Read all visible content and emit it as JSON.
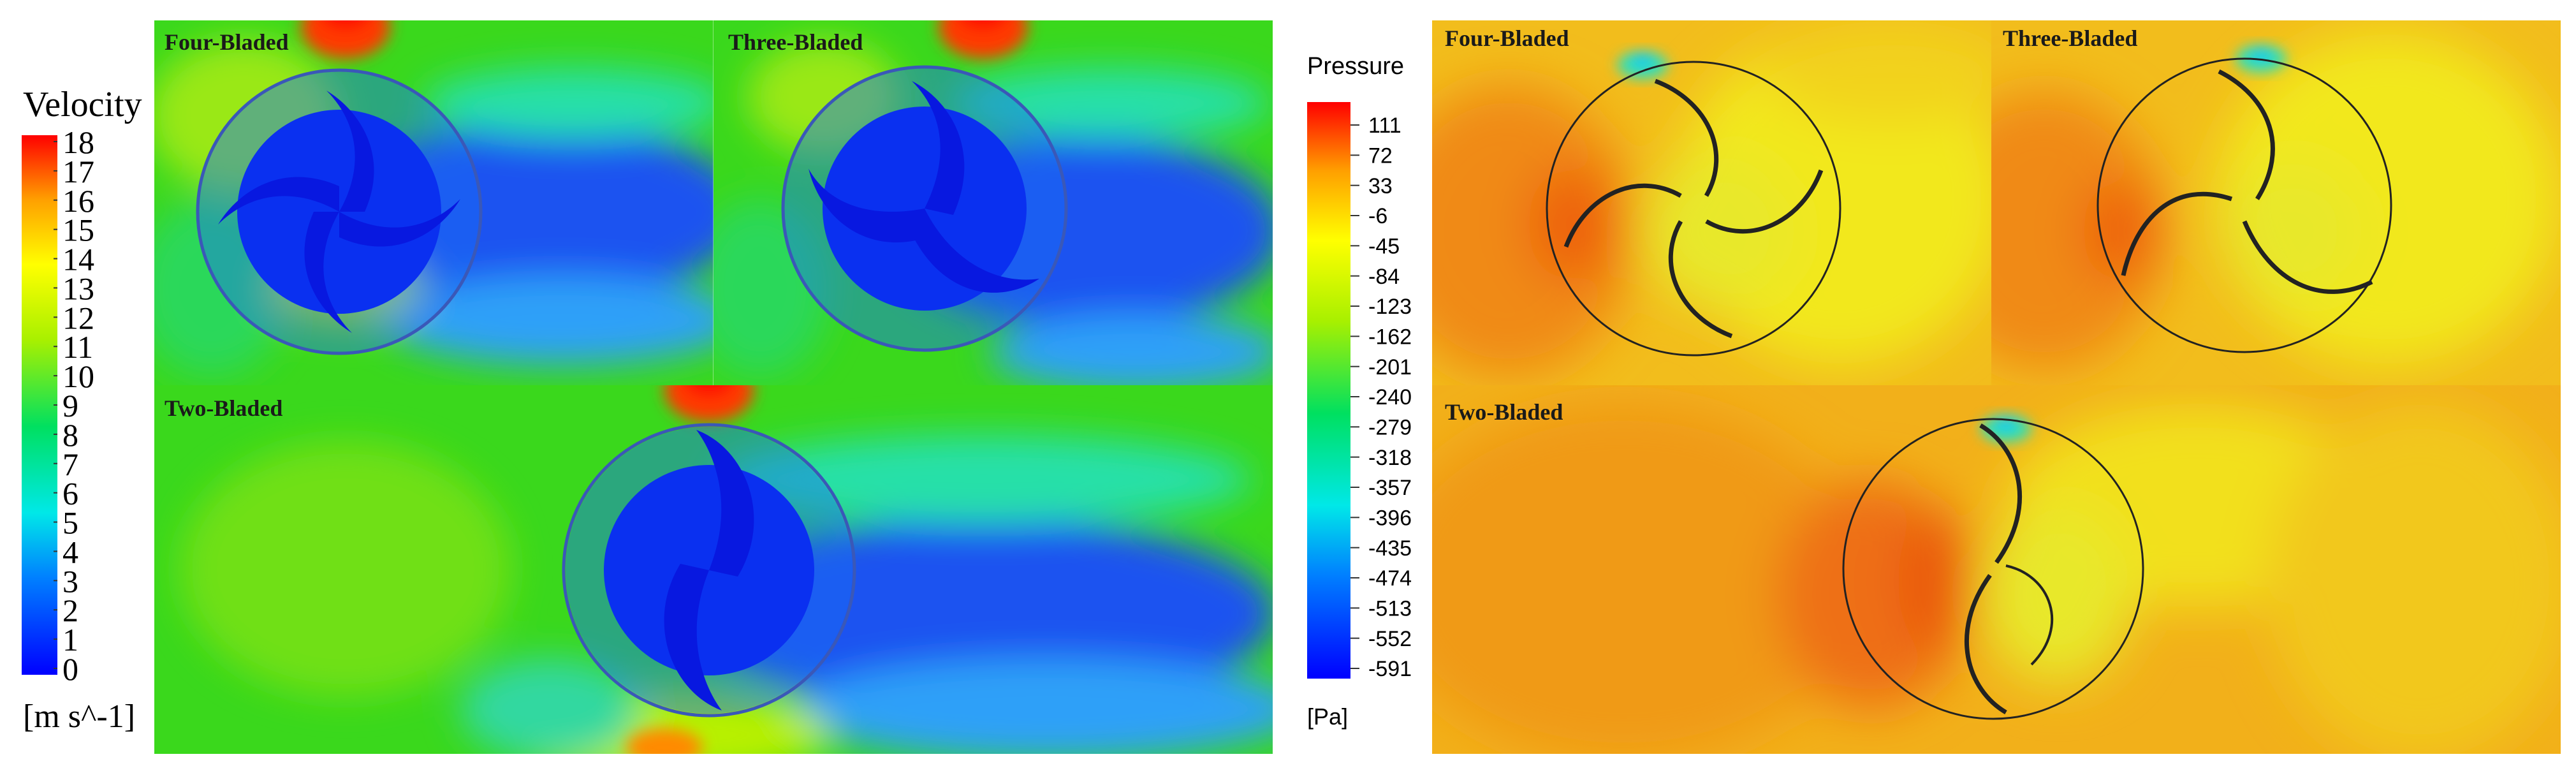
{
  "velocity_legend": {
    "title": "Velocity",
    "unit": "[m s^-1]",
    "ticks": [
      "18",
      "17",
      "16",
      "15",
      "14",
      "13",
      "12",
      "11",
      "10",
      "9",
      "8",
      "7",
      "6",
      "5",
      "4",
      "3",
      "2",
      "1",
      "0"
    ]
  },
  "pressure_legend": {
    "title": "Pressure",
    "unit": "[Pa]",
    "ticks": [
      "111",
      "72",
      "33",
      "-6",
      "-45",
      "-84",
      "-123",
      "-162",
      "-201",
      "-240",
      "-279",
      "-318",
      "-357",
      "-396",
      "-435",
      "-474",
      "-513",
      "-552",
      "-591"
    ]
  },
  "velocity_panels": {
    "four_bladed": "Four-Bladed",
    "three_bladed": "Three-Bladed",
    "two_bladed": "Two-Bladed"
  },
  "pressure_panels": {
    "four_bladed": "Four-Bladed",
    "three_bladed": "Three-Bladed",
    "two_bladed": "Two-Bladed"
  },
  "colors": {
    "velocity_background": "#3ad81c",
    "velocity_wake": "#0a2cf0",
    "velocity_high": "#ff3a00",
    "pressure_background": "#f2c21a",
    "pressure_high": "#f07a14",
    "pressure_low": "#2fe0b0"
  }
}
